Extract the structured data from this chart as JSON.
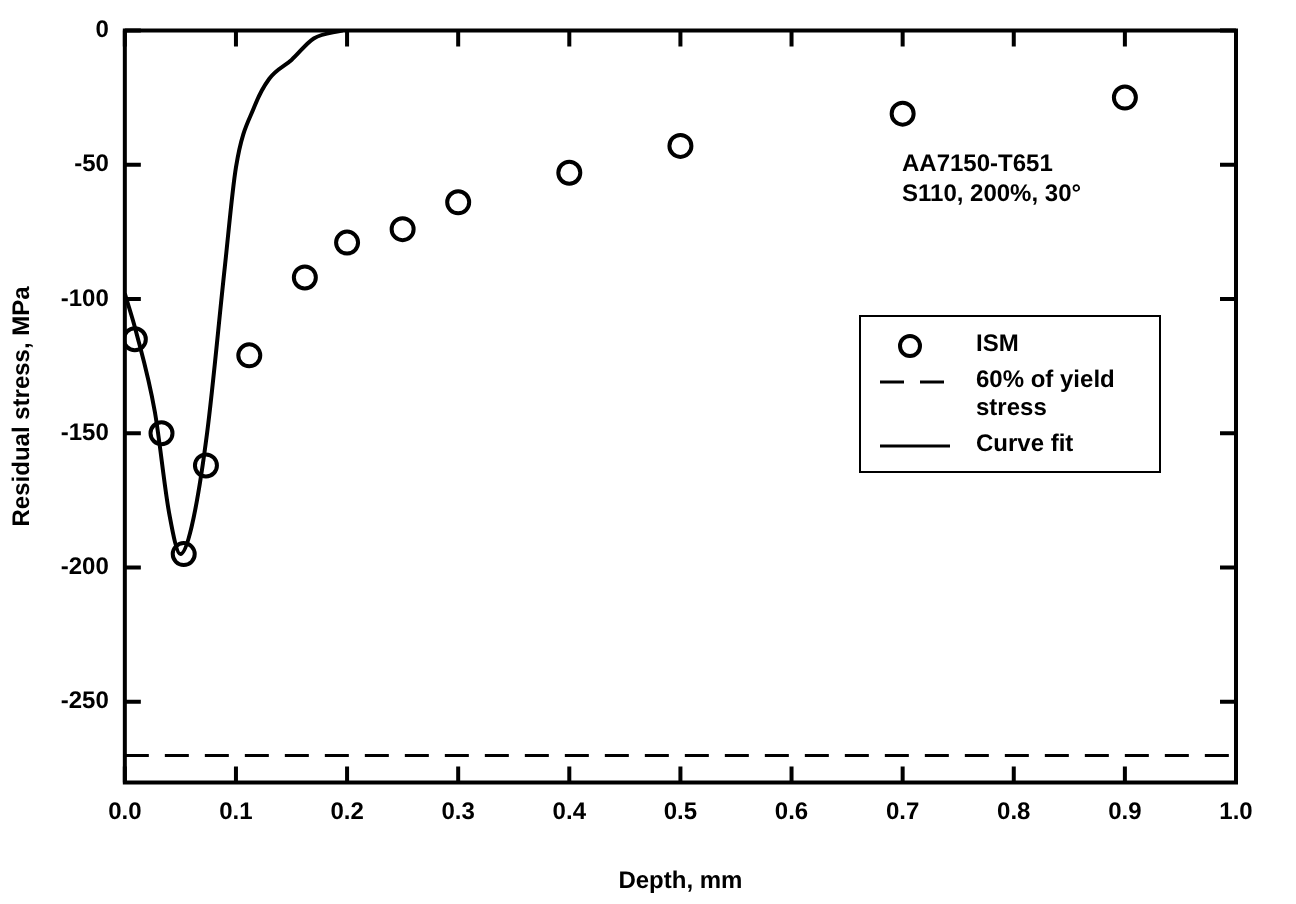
{
  "chart_data": {
    "type": "scatter",
    "xlabel": "Depth, mm",
    "ylabel": "Residual stress, MPa",
    "annotations": [
      "AA7150-T651",
      "S110, 200%, 30°"
    ],
    "series": [
      {
        "name": "ISM",
        "type": "scatter",
        "color": "#000000",
        "marker": "circle",
        "x": [
          0.009,
          0.033,
          0.053,
          0.073,
          0.112,
          0.162,
          0.2,
          0.25,
          0.3,
          0.4,
          0.5,
          0.7,
          0.9
        ],
        "values": [
          -115,
          -150,
          -195,
          -162,
          -121,
          -92,
          -79,
          -74,
          -64,
          -53,
          -43,
          -31,
          -25
        ]
      },
      {
        "name": "Curve fit",
        "type": "line",
        "color": "#000000",
        "marker": "none",
        "line_style": "solid",
        "x": [
          0,
          0.01,
          0.027,
          0.04,
          0.05,
          0.06,
          0.074,
          0.09,
          0.1,
          0.117,
          0.13,
          0.15,
          0.17,
          0.196
        ],
        "values": [
          -98,
          -112,
          -142,
          -180,
          -195,
          -185,
          -150,
          -88,
          -51,
          -28,
          -18,
          -11,
          -3,
          0
        ]
      }
    ],
    "ref_lines": [
      {
        "axis": "y",
        "value": -270,
        "label": "60% of yield stress",
        "color": "#000000",
        "line_style": "dashed"
      }
    ],
    "xlim": [
      0,
      1
    ],
    "ylim": [
      -280,
      0
    ],
    "xticks": [
      {
        "value": 0,
        "label": "0.0"
      },
      {
        "value": 0.1,
        "label": "0.1"
      },
      {
        "value": 0.2,
        "label": "0.2"
      },
      {
        "value": 0.3,
        "label": "0.3"
      },
      {
        "value": 0.4,
        "label": "0.4"
      },
      {
        "value": 0.5,
        "label": "0.5"
      },
      {
        "value": 0.6,
        "label": "0.6"
      },
      {
        "value": 0.7,
        "label": "0.7"
      },
      {
        "value": 0.8,
        "label": "0.8"
      },
      {
        "value": 0.9,
        "label": "0.9"
      },
      {
        "value": 1,
        "label": "1.0"
      }
    ],
    "yticks": [
      0,
      -50,
      -100,
      -150,
      -200,
      -250
    ],
    "grid": false,
    "legend": "right"
  }
}
